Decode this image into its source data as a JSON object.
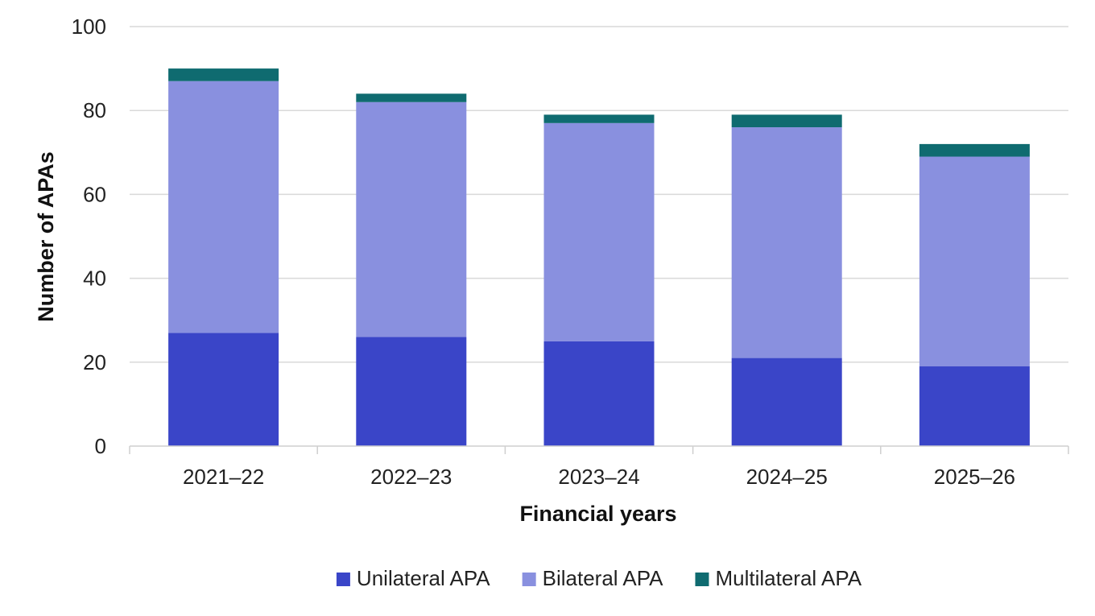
{
  "chart_data": {
    "type": "bar",
    "stacked": true,
    "title": "",
    "xlabel": "Financial years",
    "ylabel": "Number of APAs",
    "categories": [
      "2021–22",
      "2022–23",
      "2023–24",
      "2024–25",
      "2025–26"
    ],
    "series": [
      {
        "name": "Unilateral APA",
        "color": "#3a45c8",
        "values": [
          27,
          26,
          25,
          21,
          19
        ]
      },
      {
        "name": "Bilateral APA",
        "color": "#8990df",
        "values": [
          60,
          56,
          52,
          55,
          50
        ]
      },
      {
        "name": "Multilateral APA",
        "color": "#0f6b70",
        "values": [
          3,
          2,
          2,
          3,
          3
        ]
      }
    ],
    "ylim": [
      0,
      100
    ],
    "yticks": [
      0,
      20,
      40,
      60,
      80,
      100
    ],
    "grid": true,
    "legend_position": "bottom"
  }
}
